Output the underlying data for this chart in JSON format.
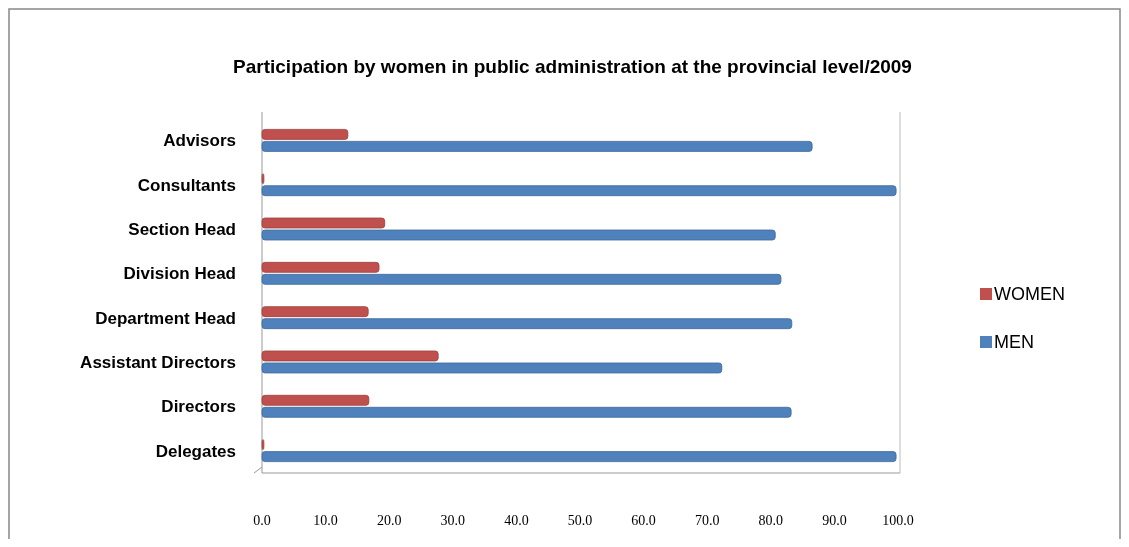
{
  "chart_data": {
    "type": "bar",
    "orientation": "horizontal",
    "title": "Participation by women in public administration at the provincial level/2009",
    "categories": [
      "Advisors",
      "Consultants",
      "Section Head",
      "Division Head",
      "Department Head",
      "Assistant Directors",
      "Directors",
      "Delegates"
    ],
    "series": [
      {
        "name": "WOMEN",
        "color": "#c0504d",
        "values": [
          13.5,
          0.3,
          19.3,
          18.4,
          16.7,
          27.7,
          16.8,
          0.3
        ]
      },
      {
        "name": "MEN",
        "color": "#4f81bd",
        "values": [
          86.5,
          99.7,
          80.7,
          81.6,
          83.3,
          72.3,
          83.2,
          99.7
        ]
      }
    ],
    "xlim": [
      0,
      100
    ],
    "xticks": [
      {
        "value": 0,
        "label": "0.0"
      },
      {
        "value": 10,
        "label": "10.0"
      },
      {
        "value": 20,
        "label": "20.0"
      },
      {
        "value": 30,
        "label": "30.0"
      },
      {
        "value": 40,
        "label": "40.0"
      },
      {
        "value": 50,
        "label": "50.0"
      },
      {
        "value": 60,
        "label": "60.0"
      },
      {
        "value": 70,
        "label": "70.0"
      },
      {
        "value": 80,
        "label": "80.0"
      },
      {
        "value": 90,
        "label": "90.0"
      },
      {
        "value": 100,
        "label": "100.0"
      }
    ],
    "legend": "right",
    "grid": false
  }
}
